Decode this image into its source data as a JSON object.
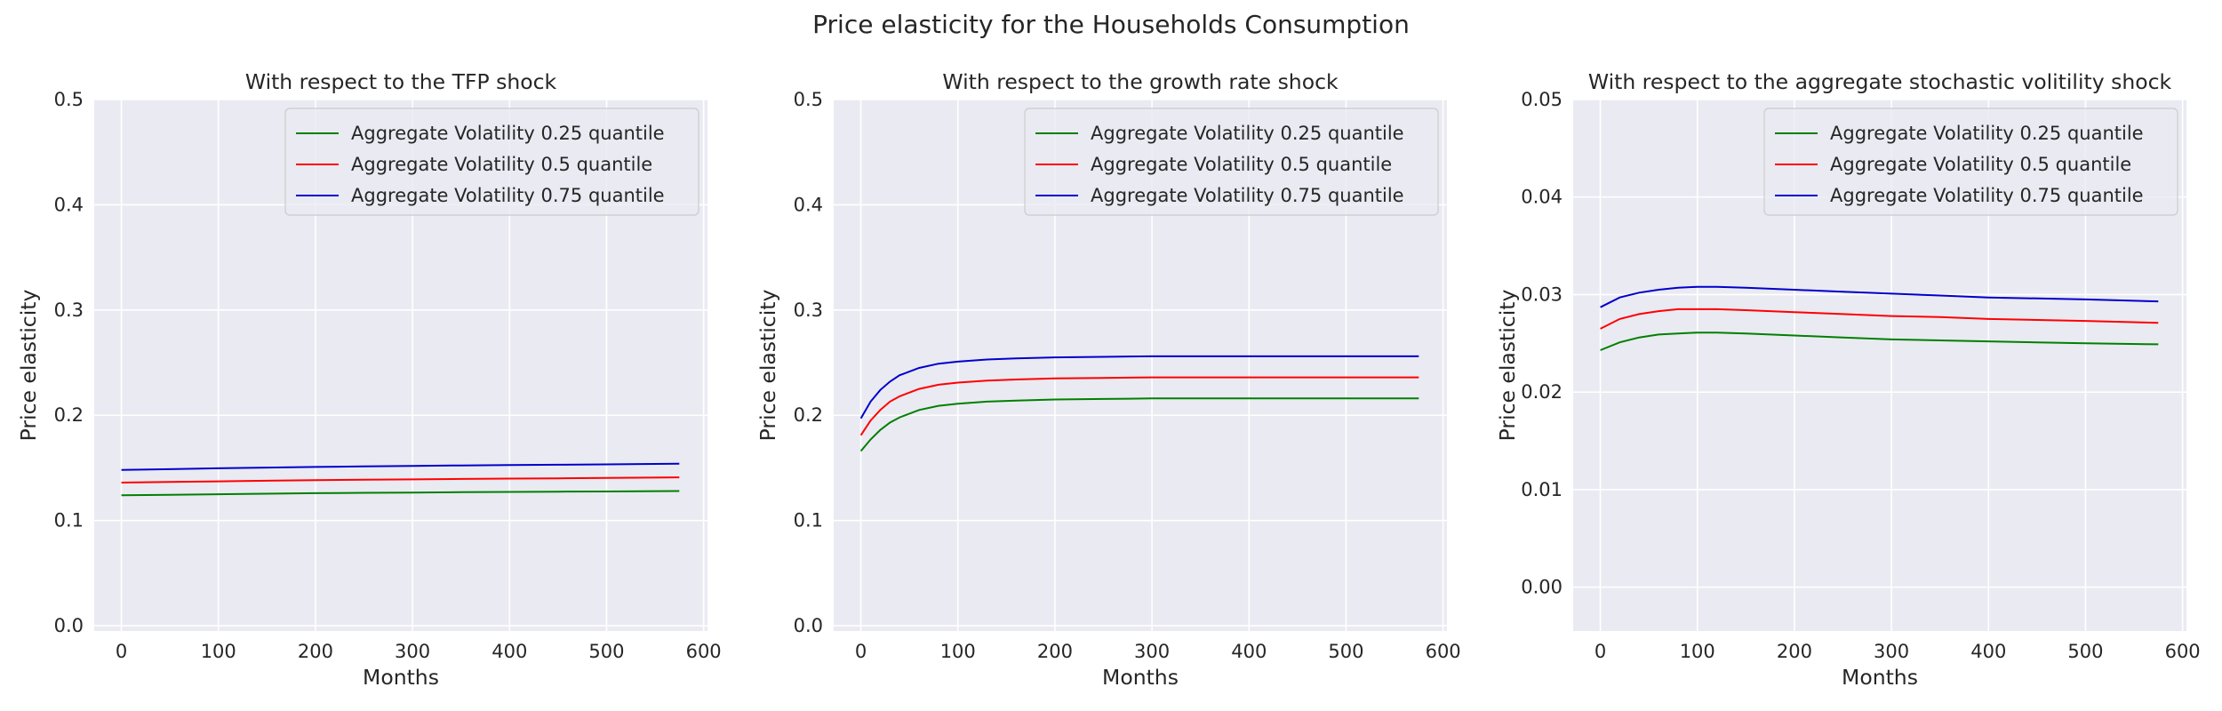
{
  "figure": {
    "suptitle": "Price elasticity for the Households Consumption",
    "background": "#ffffff",
    "axes_background": "#eaeaf2",
    "grid_color": "#ffffff"
  },
  "legend": {
    "placement": "upper right",
    "labels": [
      "Aggregate Volatility 0.25 quantile",
      "Aggregate Volatility 0.5 quantile",
      "Aggregate Volatility 0.75 quantile"
    ],
    "colors": [
      "#008000",
      "#ff0000",
      "#0000cc"
    ]
  },
  "chart_data": [
    {
      "type": "line",
      "title": "With respect to the TFP shock",
      "xlabel": "Months",
      "ylabel": "Price elasticity",
      "xlim": [
        -28,
        604
      ],
      "ylim": [
        -0.005,
        0.5
      ],
      "xticks": [
        0,
        100,
        200,
        300,
        400,
        500,
        600
      ],
      "yticks": [
        0.0,
        0.1,
        0.2,
        0.3,
        0.4,
        0.5
      ],
      "ytick_labels": [
        "0.0",
        "0.1",
        "0.2",
        "0.3",
        "0.4",
        "0.5"
      ],
      "grid": true,
      "x": [
        0,
        50,
        100,
        150,
        200,
        250,
        300,
        350,
        400,
        450,
        500,
        575
      ],
      "series": [
        {
          "name": "Aggregate Volatility 0.25 quantile",
          "values": [
            0.124,
            0.1245,
            0.125,
            0.1255,
            0.126,
            0.1263,
            0.1266,
            0.1269,
            0.1272,
            0.1274,
            0.1276,
            0.128
          ]
        },
        {
          "name": "Aggregate Volatility 0.5 quantile",
          "values": [
            0.136,
            0.1366,
            0.1372,
            0.1378,
            0.1383,
            0.1387,
            0.1391,
            0.1395,
            0.1398,
            0.1401,
            0.1404,
            0.141
          ]
        },
        {
          "name": "Aggregate Volatility 0.75 quantile",
          "values": [
            0.148,
            0.1488,
            0.1496,
            0.1503,
            0.1509,
            0.1514,
            0.1519,
            0.1523,
            0.1527,
            0.153,
            0.1533,
            0.154
          ]
        }
      ]
    },
    {
      "type": "line",
      "title": "With respect to the growth rate shock",
      "xlabel": "Months",
      "ylabel": "Price elasticity",
      "xlim": [
        -28,
        604
      ],
      "ylim": [
        -0.005,
        0.5
      ],
      "xticks": [
        0,
        100,
        200,
        300,
        400,
        500,
        600
      ],
      "yticks": [
        0.0,
        0.1,
        0.2,
        0.3,
        0.4,
        0.5
      ],
      "ytick_labels": [
        "0.0",
        "0.1",
        "0.2",
        "0.3",
        "0.4",
        "0.5"
      ],
      "grid": true,
      "x": [
        0,
        10,
        20,
        30,
        40,
        60,
        80,
        100,
        130,
        160,
        200,
        250,
        300,
        400,
        500,
        575
      ],
      "series": [
        {
          "name": "Aggregate Volatility 0.25 quantile",
          "values": [
            0.166,
            0.177,
            0.186,
            0.193,
            0.198,
            0.205,
            0.209,
            0.211,
            0.213,
            0.214,
            0.215,
            0.2155,
            0.216,
            0.216,
            0.216,
            0.216
          ]
        },
        {
          "name": "Aggregate Volatility 0.5 quantile",
          "values": [
            0.181,
            0.195,
            0.205,
            0.213,
            0.218,
            0.225,
            0.229,
            0.231,
            0.233,
            0.234,
            0.235,
            0.2355,
            0.236,
            0.236,
            0.236,
            0.236
          ]
        },
        {
          "name": "Aggregate Volatility 0.75 quantile",
          "values": [
            0.197,
            0.213,
            0.224,
            0.232,
            0.238,
            0.245,
            0.249,
            0.251,
            0.253,
            0.254,
            0.255,
            0.2555,
            0.256,
            0.256,
            0.256,
            0.256
          ]
        }
      ]
    },
    {
      "type": "line",
      "title": "With respect to the aggregate stochastic volitility shock",
      "xlabel": "Months",
      "ylabel": "Price elasticity",
      "xlim": [
        -28,
        604
      ],
      "ylim": [
        -0.0045,
        0.05
      ],
      "xticks": [
        0,
        100,
        200,
        300,
        400,
        500,
        600
      ],
      "yticks": [
        0.0,
        0.01,
        0.02,
        0.03,
        0.04,
        0.05
      ],
      "ytick_labels": [
        "0.00",
        "0.01",
        "0.02",
        "0.03",
        "0.04",
        "0.05"
      ],
      "grid": true,
      "x": [
        0,
        20,
        40,
        60,
        80,
        100,
        120,
        150,
        200,
        250,
        300,
        350,
        400,
        450,
        500,
        575
      ],
      "series": [
        {
          "name": "Aggregate Volatility 0.25 quantile",
          "values": [
            0.0243,
            0.0251,
            0.0256,
            0.0259,
            0.026,
            0.0261,
            0.0261,
            0.026,
            0.0258,
            0.0256,
            0.0254,
            0.0253,
            0.0252,
            0.0251,
            0.025,
            0.0249
          ]
        },
        {
          "name": "Aggregate Volatility 0.5 quantile",
          "values": [
            0.0265,
            0.0275,
            0.028,
            0.0283,
            0.0285,
            0.0285,
            0.0285,
            0.0284,
            0.0282,
            0.028,
            0.0278,
            0.0277,
            0.0275,
            0.0274,
            0.0273,
            0.0271
          ]
        },
        {
          "name": "Aggregate Volatility 0.75 quantile",
          "values": [
            0.0287,
            0.0297,
            0.0302,
            0.0305,
            0.0307,
            0.0308,
            0.0308,
            0.0307,
            0.0305,
            0.0303,
            0.0301,
            0.0299,
            0.0297,
            0.0296,
            0.0295,
            0.0293
          ]
        }
      ]
    }
  ]
}
